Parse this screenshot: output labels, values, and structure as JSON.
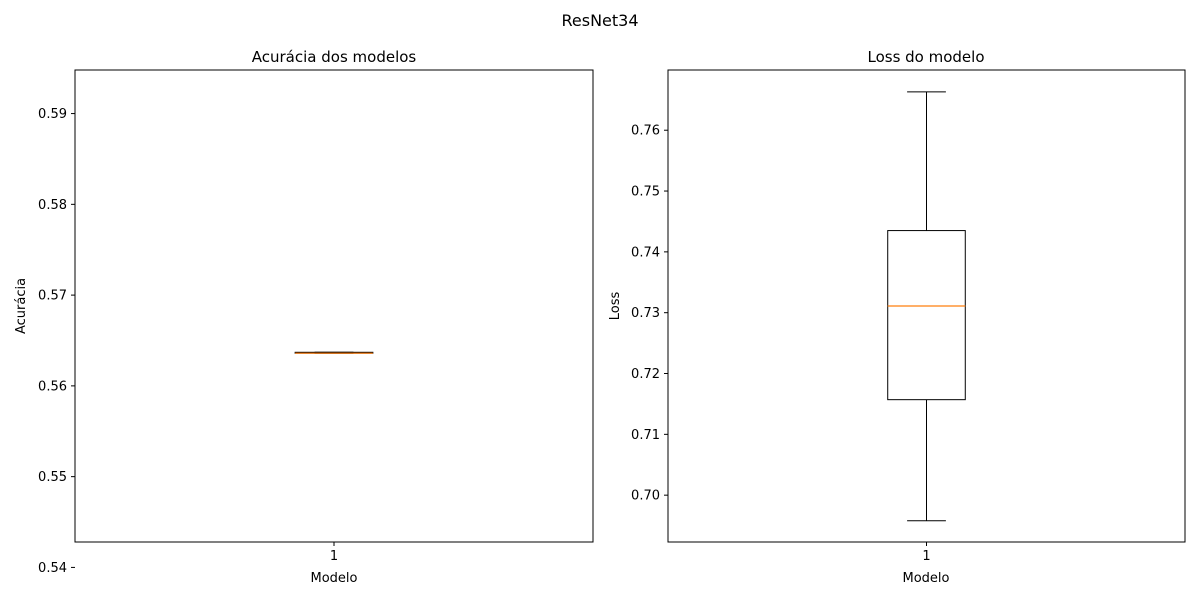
{
  "figure": {
    "title": "ResNet34"
  },
  "chart_data": [
    {
      "type": "box",
      "title": "Acurácia dos modelos",
      "xlabel": "Modelo",
      "ylabel": "Acurácia",
      "categories": [
        "1"
      ],
      "ylim": [
        0.5428,
        0.5948
      ],
      "yticks": [
        "0.54",
        "0.55",
        "0.56",
        "0.57",
        "0.58",
        "0.59"
      ],
      "ytick_values": [
        0.54,
        0.55,
        0.56,
        0.57,
        0.58,
        0.59
      ],
      "boxes": [
        {
          "category": "1",
          "whisker_low": 0.5636,
          "q1": 0.5636,
          "median": 0.5636,
          "q3": 0.5637,
          "whisker_high": 0.5637
        }
      ],
      "grid": false,
      "colors": {
        "box": "#000000",
        "median": "#ff7f0e"
      }
    },
    {
      "type": "box",
      "title": "Loss do modelo",
      "xlabel": "Modelo",
      "ylabel": "Loss",
      "categories": [
        "1"
      ],
      "ylim": [
        0.6923,
        0.7699
      ],
      "yticks": [
        "0.70",
        "0.71",
        "0.72",
        "0.73",
        "0.74",
        "0.75",
        "0.76"
      ],
      "ytick_values": [
        0.7,
        0.71,
        0.72,
        0.73,
        0.74,
        0.75,
        0.76
      ],
      "boxes": [
        {
          "category": "1",
          "whisker_low": 0.6958,
          "q1": 0.7157,
          "median": 0.7311,
          "q3": 0.7435,
          "whisker_high": 0.7663
        }
      ],
      "grid": false,
      "colors": {
        "box": "#000000",
        "median": "#ff7f0e"
      }
    }
  ]
}
